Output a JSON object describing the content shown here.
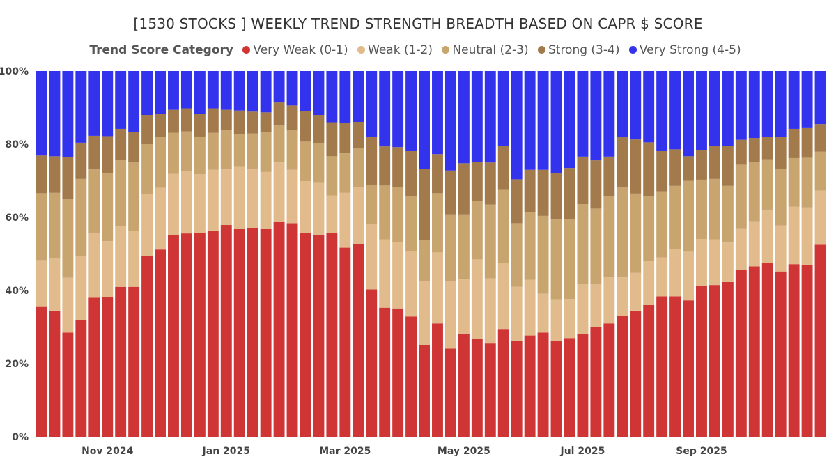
{
  "chart_data": {
    "type": "bar",
    "stacked": true,
    "normalized": true,
    "title": "[1530 STOCKS ] WEEKLY TREND STRENGTH BREADTH BASED ON CAPR $ SCORE",
    "legend_title": "Trend Score Category",
    "legend_position": "top",
    "ylim": [
      0,
      100
    ],
    "yticks": [
      "0%",
      "20%",
      "40%",
      "60%",
      "80%",
      "100%"
    ],
    "xtick_labels": [
      {
        "index": 5,
        "label": "Nov 2024"
      },
      {
        "index": 14,
        "label": "Jan 2025"
      },
      {
        "index": 23,
        "label": "Mar 2025"
      },
      {
        "index": 32,
        "label": "May 2025"
      },
      {
        "index": 41,
        "label": "Jul 2025"
      },
      {
        "index": 50,
        "label": "Sep 2025"
      }
    ],
    "series": [
      {
        "name": "Very Weak (0-1)",
        "color": "#d03535",
        "values": [
          35.5,
          34.5,
          28.5,
          32,
          38,
          38.2,
          41,
          41,
          49.5,
          51.2,
          55.2,
          55.6,
          55.8,
          56.4,
          57.9,
          56.8,
          57.1,
          56.8,
          58.7,
          58.4,
          55.7,
          55.2,
          55.7,
          51.7,
          52.7,
          40.3,
          35.3,
          35.1,
          32.9,
          25,
          31,
          24.1,
          28,
          26.8,
          25.5,
          29.3,
          26.3,
          27.7,
          28.5,
          26.1,
          27,
          28,
          30,
          31,
          33,
          34.5,
          36,
          38.4,
          38.4,
          37.3,
          41.2,
          41.5,
          42.3,
          45.6,
          46.6,
          47.6,
          45.2,
          47.2,
          47,
          52.5
        ]
      },
      {
        "name": "Weak (1-2)",
        "color": "#e1bb8c",
        "values": [
          12.8,
          14.2,
          15,
          17.5,
          17.7,
          15.3,
          16.6,
          15.3,
          16.9,
          16.9,
          16.7,
          17,
          16,
          16.6,
          15.2,
          17,
          16,
          15.6,
          16.3,
          14.6,
          14.2,
          14.2,
          10.3,
          15,
          15.5,
          17.8,
          18.7,
          18.1,
          17.9,
          17.5,
          19.4,
          18.5,
          15,
          21.7,
          17.8,
          18.3,
          14.7,
          15.2,
          10.6,
          11.5,
          10.7,
          13.8,
          11.7,
          12.6,
          10.6,
          10.3,
          12,
          10.6,
          12.9,
          13.3,
          12.9,
          12.5,
          10.8,
          11.2,
          12.3,
          14.5,
          12.6,
          15.7,
          15.7,
          14.8
        ]
      },
      {
        "name": "Neutral (2-3)",
        "color": "#c8a46e",
        "values": [
          18.3,
          18,
          21.4,
          21,
          17.4,
          18.6,
          18,
          18.7,
          13.6,
          13.8,
          11.2,
          10.9,
          10.3,
          10.1,
          10.7,
          9,
          9.8,
          10.9,
          10.1,
          11,
          10.8,
          10.8,
          10.7,
          10.8,
          10.6,
          10.8,
          14.7,
          15.1,
          15,
          11.4,
          16.2,
          18.2,
          17.8,
          15.9,
          20.2,
          19.9,
          17.4,
          18.6,
          21.3,
          21.8,
          21.9,
          21.8,
          20.7,
          22.2,
          24.6,
          21.7,
          17.7,
          18.1,
          17.3,
          19.4,
          16.2,
          16.5,
          15.5,
          17.6,
          16.3,
          13.8,
          15.4,
          13.3,
          13.6,
          10.7
        ]
      },
      {
        "name": "Strong (3-4)",
        "color": "#a27a4b",
        "values": [
          10.3,
          10,
          11.5,
          9.9,
          9.2,
          10.1,
          8.6,
          8.4,
          8,
          6.3,
          6.3,
          6.3,
          6.2,
          6.7,
          5.6,
          6.4,
          6,
          5.4,
          6.3,
          6.6,
          8.4,
          7.8,
          9.3,
          8.4,
          7.3,
          13.2,
          10.7,
          10.9,
          12.3,
          19.3,
          10.7,
          12,
          14,
          10.8,
          11.5,
          12,
          12,
          11.5,
          12.6,
          12.6,
          13.9,
          13,
          13.2,
          10.8,
          13.7,
          14.8,
          14.8,
          11,
          10,
          6.7,
          8,
          9,
          11,
          6.8,
          6.5,
          6,
          8.8,
          8,
          8.1,
          7.5
        ]
      },
      {
        "name": "Very Strong (4-5)",
        "color": "#3333ee",
        "values": [
          23.1,
          23.3,
          23.6,
          19.6,
          17.7,
          17.8,
          15.8,
          16.6,
          12,
          11.8,
          10.6,
          10.2,
          11.7,
          10.2,
          10.6,
          10.8,
          11.1,
          11.3,
          8.6,
          9.4,
          10.9,
          12,
          14,
          14.1,
          13.9,
          17.9,
          20.6,
          20.8,
          21.9,
          26.8,
          22.7,
          27.2,
          25.2,
          24.8,
          25,
          20.5,
          29.6,
          27,
          27,
          28,
          26.5,
          23.4,
          24.4,
          23.4,
          18.1,
          18.7,
          19.5,
          21.9,
          21.4,
          23.3,
          21.7,
          20.5,
          20.4,
          18.8,
          18.3,
          18.1,
          18,
          15.8,
          15.6,
          14.5
        ]
      }
    ]
  }
}
